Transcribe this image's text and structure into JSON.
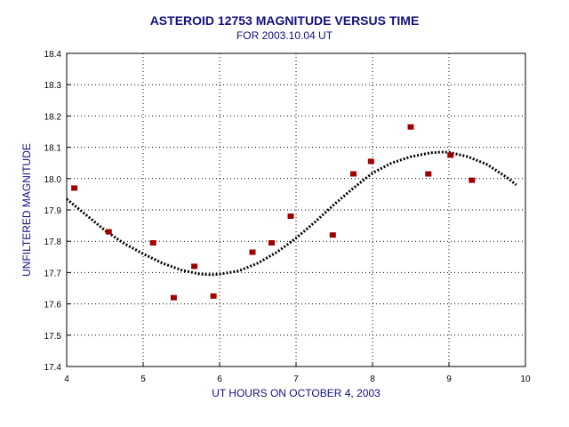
{
  "chart_data": {
    "type": "scatter",
    "title": "ASTEROID 12753 MAGNITUDE VERSUS TIME",
    "subtitle": "FOR 2003.10.04 UT",
    "xlabel": "UT HOURS ON OCTOBER 4, 2003",
    "ylabel": "UNFILTERED MAGNITUDE",
    "xlim": [
      4,
      10
    ],
    "ylim": [
      17.4,
      18.4
    ],
    "x_ticks": [
      "4",
      "5",
      "6",
      "7",
      "8",
      "9",
      "10"
    ],
    "y_ticks": [
      "17.4",
      "17.5",
      "17.6",
      "17.7",
      "17.8",
      "17.9",
      "18.0",
      "18.1",
      "18.2",
      "18.3",
      "18.4"
    ],
    "grid": true,
    "series": [
      {
        "style": "markers",
        "color": "#a00000",
        "points": [
          {
            "x": 4.1,
            "y": 17.97
          },
          {
            "x": 4.55,
            "y": 17.83
          },
          {
            "x": 5.13,
            "y": 17.795
          },
          {
            "x": 5.4,
            "y": 17.62
          },
          {
            "x": 5.67,
            "y": 17.72
          },
          {
            "x": 5.92,
            "y": 17.625
          },
          {
            "x": 6.43,
            "y": 17.765
          },
          {
            "x": 6.68,
            "y": 17.795
          },
          {
            "x": 6.93,
            "y": 17.88
          },
          {
            "x": 7.48,
            "y": 17.82
          },
          {
            "x": 7.75,
            "y": 18.015
          },
          {
            "x": 7.98,
            "y": 18.055
          },
          {
            "x": 8.5,
            "y": 18.165
          },
          {
            "x": 8.73,
            "y": 18.015
          },
          {
            "x": 9.02,
            "y": 18.075
          },
          {
            "x": 9.3,
            "y": 17.995
          }
        ]
      },
      {
        "style": "dotted-curve",
        "color": "#000000",
        "points": [
          {
            "x": 4.0,
            "y": 17.935
          },
          {
            "x": 4.25,
            "y": 17.885
          },
          {
            "x": 4.5,
            "y": 17.835
          },
          {
            "x": 4.75,
            "y": 17.793
          },
          {
            "x": 5.0,
            "y": 17.76
          },
          {
            "x": 5.25,
            "y": 17.73
          },
          {
            "x": 5.5,
            "y": 17.708
          },
          {
            "x": 5.75,
            "y": 17.695
          },
          {
            "x": 5.9,
            "y": 17.693
          },
          {
            "x": 6.0,
            "y": 17.695
          },
          {
            "x": 6.25,
            "y": 17.705
          },
          {
            "x": 6.5,
            "y": 17.73
          },
          {
            "x": 6.75,
            "y": 17.765
          },
          {
            "x": 7.0,
            "y": 17.81
          },
          {
            "x": 7.25,
            "y": 17.862
          },
          {
            "x": 7.5,
            "y": 17.918
          },
          {
            "x": 7.75,
            "y": 17.97
          },
          {
            "x": 8.0,
            "y": 18.018
          },
          {
            "x": 8.25,
            "y": 18.05
          },
          {
            "x": 8.5,
            "y": 18.07
          },
          {
            "x": 8.75,
            "y": 18.082
          },
          {
            "x": 8.9,
            "y": 18.085
          },
          {
            "x": 9.0,
            "y": 18.084
          },
          {
            "x": 9.25,
            "y": 18.07
          },
          {
            "x": 9.5,
            "y": 18.045
          },
          {
            "x": 9.75,
            "y": 18.005
          },
          {
            "x": 9.88,
            "y": 17.98
          }
        ]
      }
    ]
  }
}
